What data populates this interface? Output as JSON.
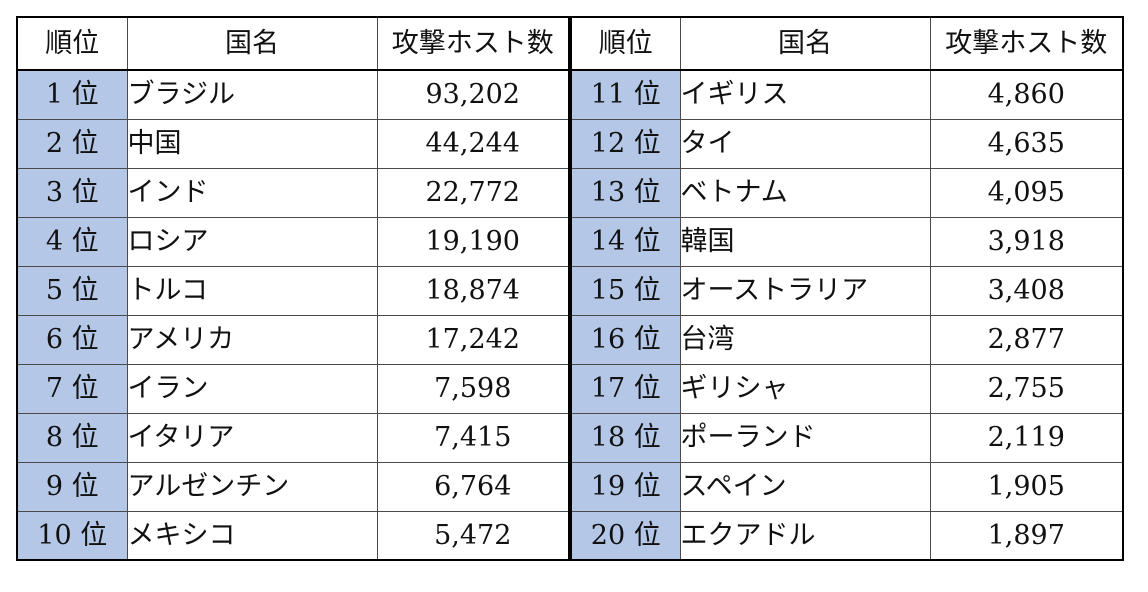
{
  "headers": {
    "rank": "順位",
    "country": "国名",
    "hosts": "攻撃ホスト数"
  },
  "left_rows": [
    {
      "rank": "1 位",
      "country": "ブラジル",
      "hosts": "93,202"
    },
    {
      "rank": "2 位",
      "country": "中国",
      "hosts": "44,244"
    },
    {
      "rank": "3 位",
      "country": "インド",
      "hosts": "22,772"
    },
    {
      "rank": "4 位",
      "country": "ロシア",
      "hosts": "19,190"
    },
    {
      "rank": "5 位",
      "country": "トルコ",
      "hosts": "18,874"
    },
    {
      "rank": "6 位",
      "country": "アメリカ",
      "hosts": "17,242"
    },
    {
      "rank": "7 位",
      "country": "イラン",
      "hosts": "7,598"
    },
    {
      "rank": "8 位",
      "country": "イタリア",
      "hosts": "7,415"
    },
    {
      "rank": "9 位",
      "country": "アルゼンチン",
      "hosts": "6,764"
    },
    {
      "rank": "10 位",
      "country": "メキシコ",
      "hosts": "5,472"
    }
  ],
  "right_rows": [
    {
      "rank": "11 位",
      "country": "イギリス",
      "hosts": "4,860"
    },
    {
      "rank": "12 位",
      "country": "タイ",
      "hosts": "4,635"
    },
    {
      "rank": "13 位",
      "country": "ベトナム",
      "hosts": "4,095"
    },
    {
      "rank": "14 位",
      "country": "韓国",
      "hosts": "3,918"
    },
    {
      "rank": "15 位",
      "country": "オーストラリア",
      "hosts": "3,408"
    },
    {
      "rank": "16 位",
      "country": "台湾",
      "hosts": "2,877"
    },
    {
      "rank": "17 位",
      "country": "ギリシャ",
      "hosts": "2,755"
    },
    {
      "rank": "18 位",
      "country": "ポーランド",
      "hosts": "2,119"
    },
    {
      "rank": "19 位",
      "country": "スペイン",
      "hosts": "1,905"
    },
    {
      "rank": "20 位",
      "country": "エクアドル",
      "hosts": "1,897"
    }
  ],
  "colors": {
    "rank_cell_background": "#b4c7e7"
  }
}
